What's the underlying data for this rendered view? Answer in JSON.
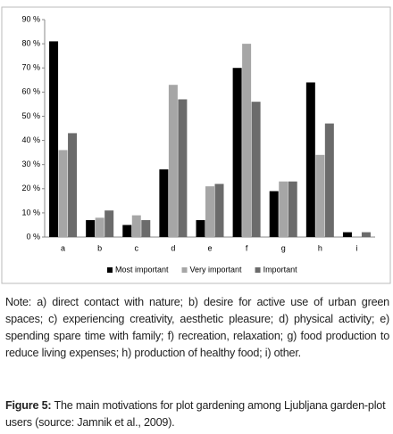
{
  "chart_data": {
    "type": "bar",
    "categories": [
      "a",
      "b",
      "c",
      "d",
      "e",
      "f",
      "g",
      "h",
      "i"
    ],
    "series": [
      {
        "name": "Most important",
        "color": "#000000",
        "values": [
          81,
          7,
          5,
          28,
          7,
          70,
          19,
          64,
          2
        ]
      },
      {
        "name": "Very important",
        "color": "#a6a6a6",
        "values": [
          36,
          8,
          9,
          63,
          21,
          80,
          23,
          34,
          0
        ]
      },
      {
        "name": "Important",
        "color": "#6b6b6b",
        "values": [
          43,
          11,
          7,
          57,
          22,
          56,
          23,
          47,
          2
        ]
      }
    ],
    "ylim": [
      0,
      90
    ],
    "yticks": [
      {
        "value": 0,
        "label": "0 %"
      },
      {
        "value": 10,
        "label": "10 %"
      },
      {
        "value": 20,
        "label": "20 %"
      },
      {
        "value": 30,
        "label": "30 %"
      },
      {
        "value": 40,
        "label": "40 %"
      },
      {
        "value": 50,
        "label": "50 %"
      },
      {
        "value": 60,
        "label": "60 %"
      },
      {
        "value": 70,
        "label": "70 %"
      },
      {
        "value": 80,
        "label": "80 %"
      },
      {
        "value": 90,
        "label": "90 %"
      }
    ],
    "legend": "bottom"
  },
  "note": "Note: a) direct contact with nature; b) desire for active use of urban green spaces; c) experiencing creativity, aesthetic pleasure; d) physical activity; e) spending spare time with family; f) recreation, relaxation; g) food production to reduce living expenses; h) production of healthy food; i) other.",
  "caption": {
    "label": "Figure 5:",
    "text": "The main motivations for plot gardening among Ljubljana garden-plot users (source: Jamnik et al., 2009)."
  }
}
